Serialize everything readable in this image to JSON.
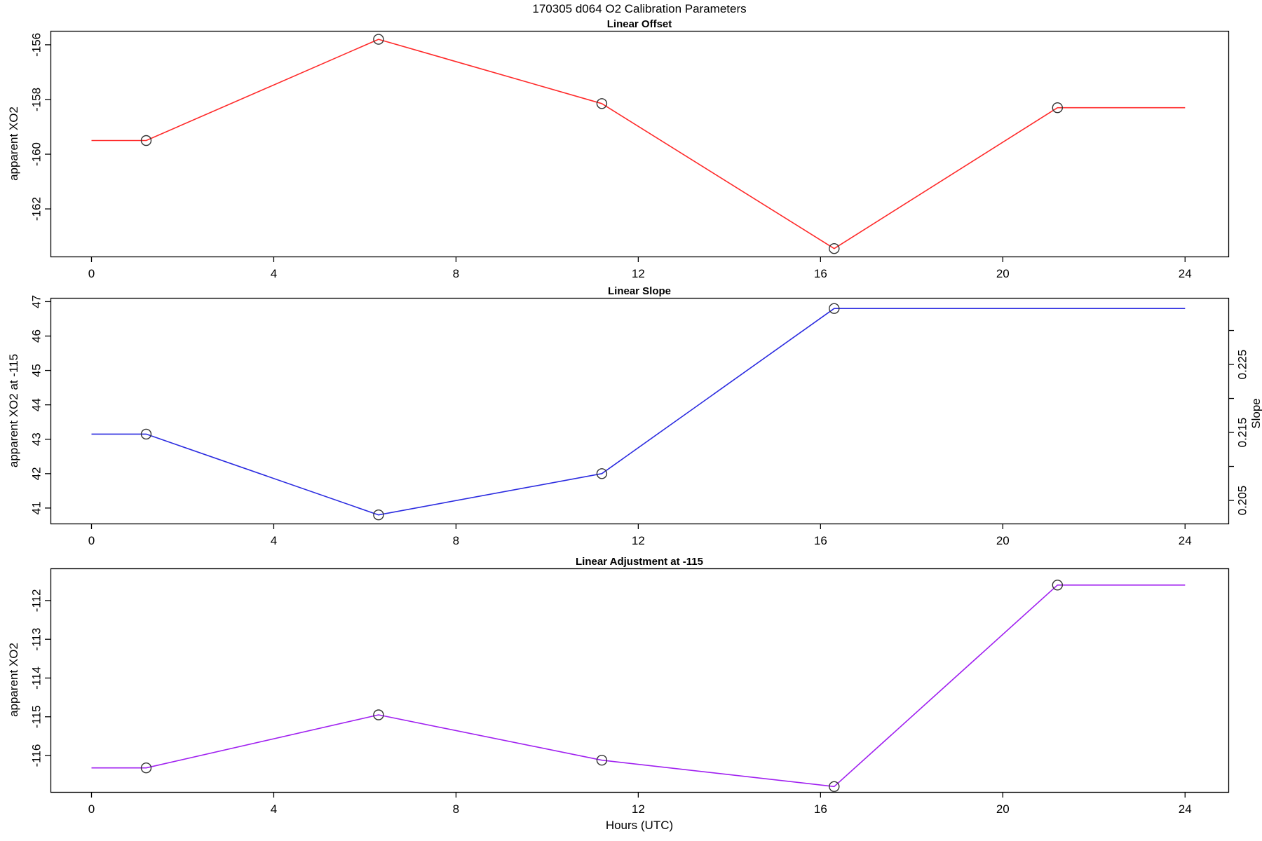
{
  "page": {
    "title": "170305   d064   O2 Calibration Parameters",
    "xlabel": "Hours (UTC)",
    "background": "#ffffff",
    "axis_color": "#000000",
    "marker_color": "#333333"
  },
  "chart_data": [
    {
      "type": "line",
      "title": "Linear Offset",
      "series_color": "#ff2a2a",
      "marker": "open-circle",
      "ylabel": "apparent XO2",
      "x": [
        0,
        1.2,
        6.3,
        11.2,
        16.3,
        21.2,
        24
      ],
      "y": [
        -159.5,
        -159.5,
        -155.8,
        -158.15,
        -163.45,
        -158.3,
        -158.3
      ],
      "marker_x": [
        1.2,
        6.3,
        11.2,
        16.3,
        21.2
      ],
      "marker_y": [
        -159.5,
        -155.8,
        -158.15,
        -163.45,
        -158.3
      ],
      "xticks": [
        0,
        4,
        8,
        12,
        16,
        20,
        24
      ],
      "xtick_labels_shown": false,
      "yticks": [
        -156,
        -158,
        -160,
        -162
      ],
      "xlim": [
        -0.9,
        24.95
      ],
      "ylim": [
        -163.74,
        -155.49
      ],
      "grid": false
    },
    {
      "type": "line",
      "title": "Linear Slope",
      "series_color": "#2b2be0",
      "marker": "open-circle",
      "ylabel": "apparent XO2 at -115",
      "ylabel_right": "Slope",
      "x": [
        0,
        1.2,
        6.3,
        11.2,
        16.3,
        24
      ],
      "y": [
        43.15,
        43.15,
        40.8,
        42.0,
        46.8,
        46.8
      ],
      "marker_x": [
        1.2,
        6.3,
        11.2,
        16.3
      ],
      "marker_y": [
        43.15,
        40.8,
        42.0,
        46.8
      ],
      "xticks": [
        0,
        4,
        8,
        12,
        16,
        20,
        24
      ],
      "xtick_labels_shown": false,
      "yticks": [
        47,
        46,
        45,
        44,
        43,
        42,
        41
      ],
      "yticks_right": [
        0.205,
        0.21,
        0.215,
        0.22,
        0.225,
        0.23
      ],
      "ytick_labels_right": [
        "0.205",
        "",
        "0.215",
        "",
        "0.225",
        ""
      ],
      "xlim": [
        -0.9,
        24.95
      ],
      "ylim": [
        40.55,
        47.11
      ],
      "ylim_right": [
        0.2016,
        0.2348
      ],
      "grid": false
    },
    {
      "type": "line",
      "title": "Linear Adjustment at -115",
      "series_color": "#a020f0",
      "marker": "open-circle",
      "ylabel": "apparent XO2",
      "x": [
        0,
        1.2,
        6.3,
        11.2,
        16.3,
        21.2,
        24
      ],
      "y": [
        -116.32,
        -116.32,
        -114.95,
        -116.12,
        -116.8,
        -111.6,
        -111.6
      ],
      "marker_x": [
        1.2,
        6.3,
        11.2,
        16.3,
        21.2
      ],
      "marker_y": [
        -116.32,
        -114.95,
        -116.12,
        -116.8,
        -111.6
      ],
      "xticks": [
        0,
        4,
        8,
        12,
        16,
        20,
        24
      ],
      "xtick_labels_shown": true,
      "yticks": [
        -112,
        -113,
        -114,
        -115,
        -116
      ],
      "xlim": [
        -0.9,
        24.95
      ],
      "ylim": [
        -116.94,
        -111.17
      ],
      "grid": false
    }
  ]
}
